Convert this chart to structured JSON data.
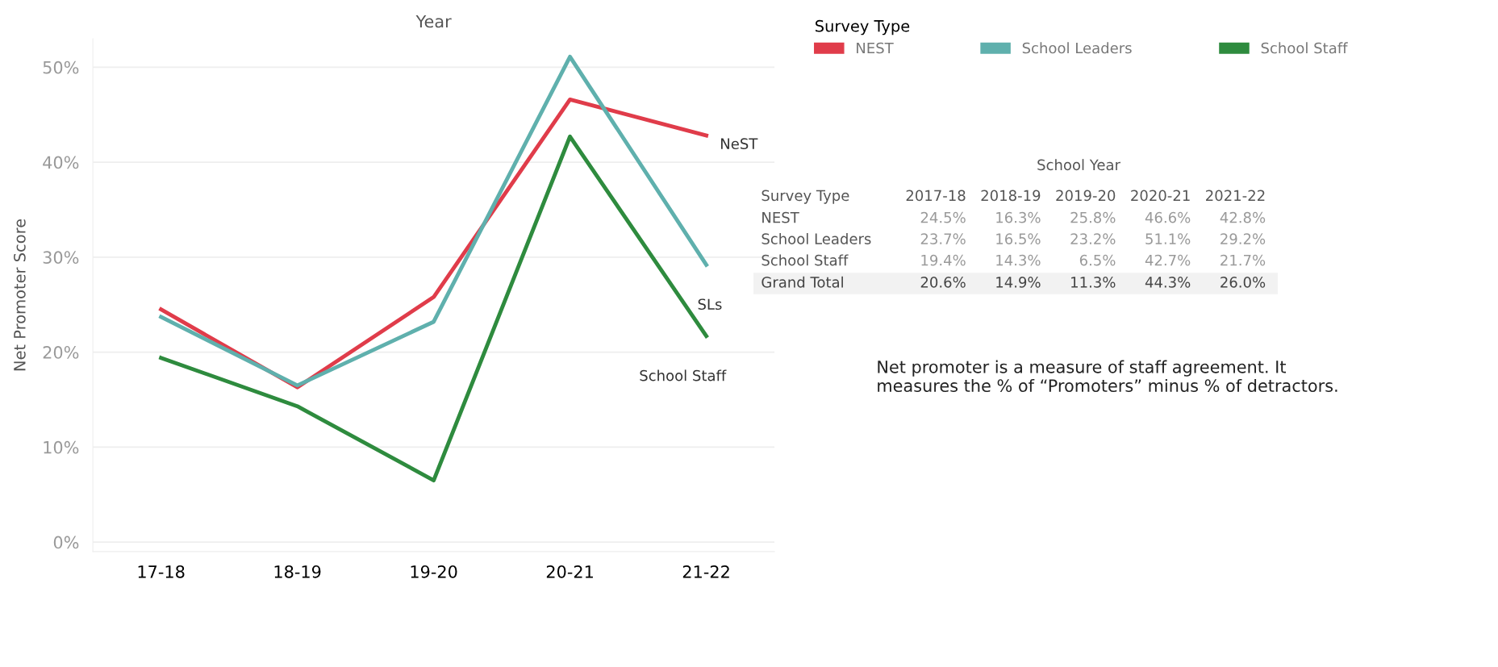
{
  "chart_data": {
    "type": "line",
    "title": "Year",
    "ylabel": "Net Promoter Score",
    "legend_title": "Survey Type",
    "legend": "top right",
    "grid": "y",
    "marker": "none",
    "line_style": "solid",
    "categories": [
      "17-18",
      "18-19",
      "19-20",
      "20-21",
      "21-22"
    ],
    "ylim": [
      -1,
      53
    ],
    "yticks": [
      {
        "value": 0,
        "label": "0%"
      },
      {
        "value": 10,
        "label": "10%"
      },
      {
        "value": 20,
        "label": "20%"
      },
      {
        "value": 30,
        "label": "30%"
      },
      {
        "value": 40,
        "label": "40%"
      },
      {
        "value": 50,
        "label": "50%"
      }
    ],
    "series": [
      {
        "name": "NEST",
        "color": "#e03c4a",
        "values": [
          24.5,
          16.3,
          25.8,
          46.6,
          42.8
        ]
      },
      {
        "name": "School Leaders",
        "color": "#5fb0ad",
        "values": [
          23.7,
          16.5,
          23.2,
          51.1,
          29.2
        ]
      },
      {
        "name": "School Staff",
        "color": "#2e8b3e",
        "values": [
          19.4,
          14.3,
          6.5,
          42.7,
          21.7
        ]
      }
    ],
    "annotations": [
      "School Year",
      "Survey Type",
      "2017-18",
      "2018-19",
      "2019-20",
      "2020-21",
      "2021-22",
      "Grand Total",
      "20.6%",
      "14.9%",
      "11.3%",
      "44.3%",
      "26.0%",
      "Net promoter is a measure of staff agreement. It measures the % of “Promoters” minus % of detractors.",
      "24.5%",
      "16.3%",
      "25.8%",
      "46.6%",
      "42.8%",
      "23.7%",
      "16.5%",
      "23.2%",
      "51.1%",
      "29.2%",
      "19.4%",
      "14.3%",
      "6.5%",
      "42.7%",
      "21.7%",
      {
        "text": "NeST",
        "x": "21-22",
        "y": 42.8
      },
      {
        "text": "SLs",
        "x": "21-22",
        "y": 29.2
      },
      {
        "text": "School Staff",
        "x": "21-22",
        "y": 21.7
      }
    ]
  }
}
